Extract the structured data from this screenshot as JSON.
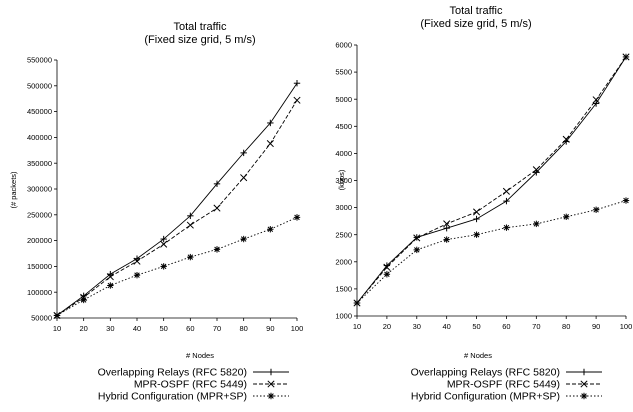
{
  "chart_data": [
    {
      "type": "line",
      "title": "Total traffic",
      "subtitle": "(Fixed size grid, 5 m/s)",
      "xlabel": "# Nodes",
      "ylabel": "(# packets)",
      "x": [
        10,
        20,
        30,
        40,
        50,
        60,
        70,
        80,
        90,
        100
      ],
      "xlim": [
        10,
        100
      ],
      "ylim": [
        50000,
        550000
      ],
      "yticks": [
        50000,
        100000,
        150000,
        200000,
        250000,
        300000,
        350000,
        400000,
        450000,
        500000,
        550000
      ],
      "grid": false,
      "series": [
        {
          "name": "Overlapping Relays (RFC 5820)",
          "values": [
            55000,
            93000,
            135000,
            165000,
            203000,
            248000,
            310000,
            370000,
            428000,
            505000
          ]
        },
        {
          "name": "MPR-OSPF (RFC 5449)",
          "values": [
            55000,
            90000,
            130000,
            160000,
            193000,
            230000,
            263000,
            322000,
            388000,
            472000
          ]
        },
        {
          "name": "Hybrid Configuration (MPR+SP)",
          "values": [
            55000,
            85000,
            113000,
            133000,
            150000,
            168000,
            183000,
            203000,
            222000,
            245000
          ]
        }
      ],
      "legend": [
        {
          "label": "Overlapping Relays (RFC 5820)",
          "marker": "+",
          "dash": "solid"
        },
        {
          "label": "MPR-OSPF (RFC 5449)",
          "marker": "×",
          "dash": "dashed"
        },
        {
          "label": "Hybrid Configuration (MPR+SP)",
          "marker": "✱",
          "dash": "dotted"
        }
      ],
      "legend_position": "bottom-right"
    },
    {
      "type": "line",
      "title": "Total traffic",
      "subtitle": "(Fixed size grid, 5 m/s)",
      "xlabel": "# Nodes",
      "ylabel": "(kbps)",
      "x": [
        10,
        20,
        30,
        40,
        50,
        60,
        70,
        80,
        90,
        100
      ],
      "xlim": [
        10,
        100
      ],
      "ylim": [
        1000,
        6000
      ],
      "yticks": [
        1000,
        1500,
        2000,
        2500,
        3000,
        3500,
        4000,
        4500,
        5000,
        5500,
        6000
      ],
      "grid": false,
      "series": [
        {
          "name": "Overlapping Relays (RFC 5820)",
          "values": [
            1240,
            1930,
            2450,
            2620,
            2790,
            3120,
            3650,
            4220,
            4920,
            5780
          ]
        },
        {
          "name": "MPR-OSPF (RFC 5449)",
          "values": [
            1240,
            1900,
            2440,
            2700,
            2920,
            3300,
            3700,
            4260,
            4990,
            5780
          ]
        },
        {
          "name": "Hybrid Configuration (MPR+SP)",
          "values": [
            1240,
            1770,
            2220,
            2410,
            2500,
            2630,
            2700,
            2830,
            2960,
            3130
          ]
        }
      ],
      "legend": [
        {
          "label": "Overlapping Relays (RFC 5820)",
          "marker": "+",
          "dash": "solid"
        },
        {
          "label": "MPR-OSPF (RFC 5449)",
          "marker": "×",
          "dash": "dashed"
        },
        {
          "label": "Hybrid Configuration (MPR+SP)",
          "marker": "✱",
          "dash": "dotted"
        }
      ],
      "legend_position": "bottom-right"
    }
  ]
}
